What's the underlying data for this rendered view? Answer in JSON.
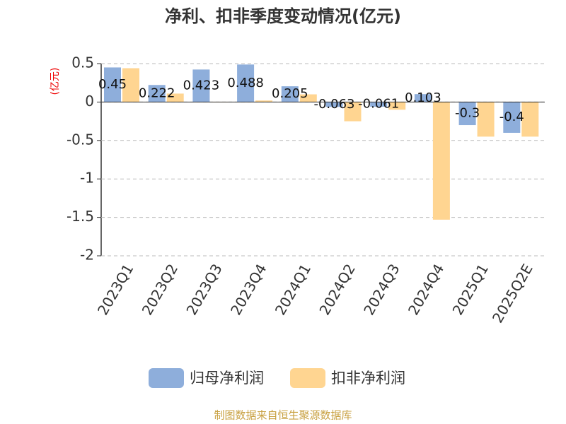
{
  "chart_data": {
    "type": "bar",
    "title": "净利、扣非季度变动情况(亿元)",
    "y_label": "(亿元)",
    "categories": [
      "2023Q1",
      "2023Q2",
      "2023Q3",
      "2023Q4",
      "2024Q1",
      "2024Q2",
      "2024Q3",
      "2024Q4",
      "2025Q1",
      "2025Q2E"
    ],
    "series": [
      {
        "name": "归母净利润",
        "color": "#8eaedb",
        "values": [
          0.45,
          0.222,
          0.423,
          0.488,
          0.205,
          -0.063,
          -0.061,
          0.103,
          -0.3,
          -0.4
        ],
        "show_labels": true
      },
      {
        "name": "扣非净利润",
        "color": "#ffd591",
        "values": [
          0.44,
          0.11,
          0.0,
          0.02,
          0.1,
          -0.25,
          -0.1,
          -1.53,
          -0.45,
          -0.45
        ],
        "show_labels": false
      }
    ],
    "ylim": [
      -2,
      0.5
    ],
    "yticks": [
      -2,
      -1.5,
      -1,
      -0.5,
      0,
      0.5
    ],
    "grid": true,
    "source": "制图数据来自恒生聚源数据库"
  }
}
